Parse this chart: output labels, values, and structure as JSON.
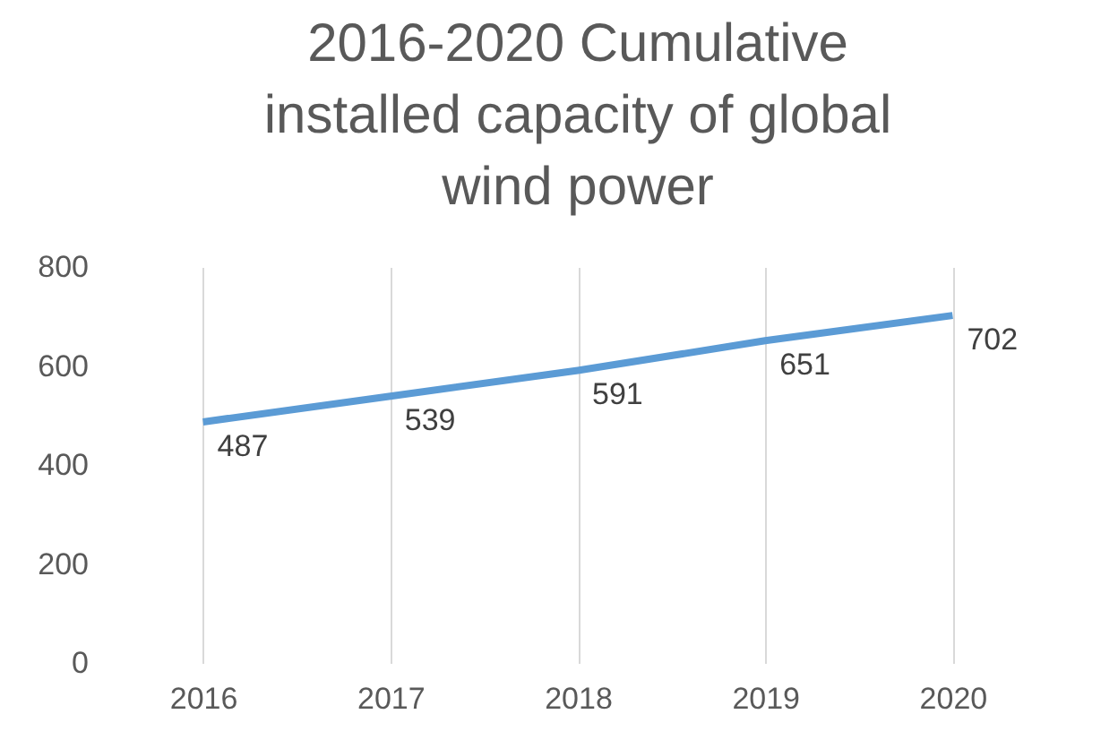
{
  "chart_data": {
    "type": "line",
    "title": "2016-2020 Cumulative installed capacity of global wind power",
    "categories": [
      "2016",
      "2017",
      "2018",
      "2019",
      "2020"
    ],
    "series": [
      {
        "color": "#5b9bd5",
        "values": [
          487,
          539,
          591,
          651,
          702
        ]
      }
    ],
    "ylim": [
      0,
      800
    ],
    "yticks": [
      0,
      200,
      400,
      600,
      800
    ],
    "grid": "x",
    "data_labels": true,
    "marker": "none",
    "line_style": "solid",
    "legend": false
  }
}
